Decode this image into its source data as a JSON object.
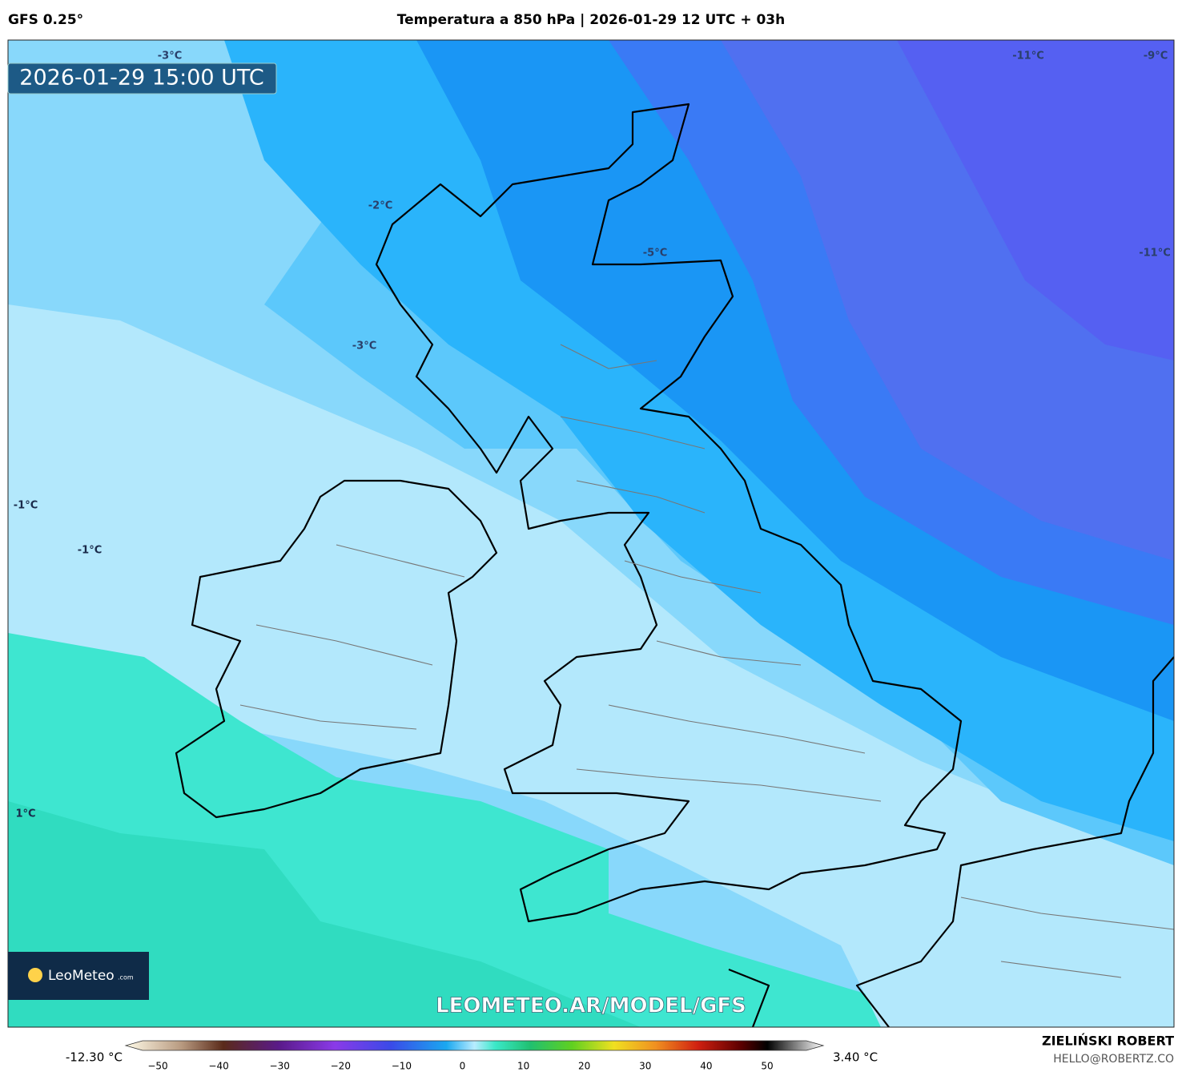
{
  "header": {
    "model": "GFS 0.25°",
    "title": "Temperatura a 850 hPa | 2026-01-29 12 UTC + 03h"
  },
  "map": {
    "valid_time": "2026-01-29 15:00 UTC",
    "contour_labels": [
      "-3°C",
      "-11°C",
      "-9°C",
      "-2°C",
      "-5°C",
      "-11°C",
      "-3°C",
      "-1°C",
      "-1°C",
      "1°C"
    ],
    "logo": "LeoMeteo",
    "logo_suffix": ".com",
    "watermark": "LEOMETEO.AR/MODEL/GFS"
  },
  "colorbar": {
    "min_label": "-12.30 °C",
    "max_label": "3.40 °C",
    "ticks": [
      "−50",
      "−40",
      "−30",
      "−20",
      "−10",
      "0",
      "10",
      "20",
      "30",
      "40",
      "50"
    ]
  },
  "footer": {
    "author": "ZIELIŃSKI ROBERT",
    "email": "HELLO@ROBERTZ.CO"
  }
}
